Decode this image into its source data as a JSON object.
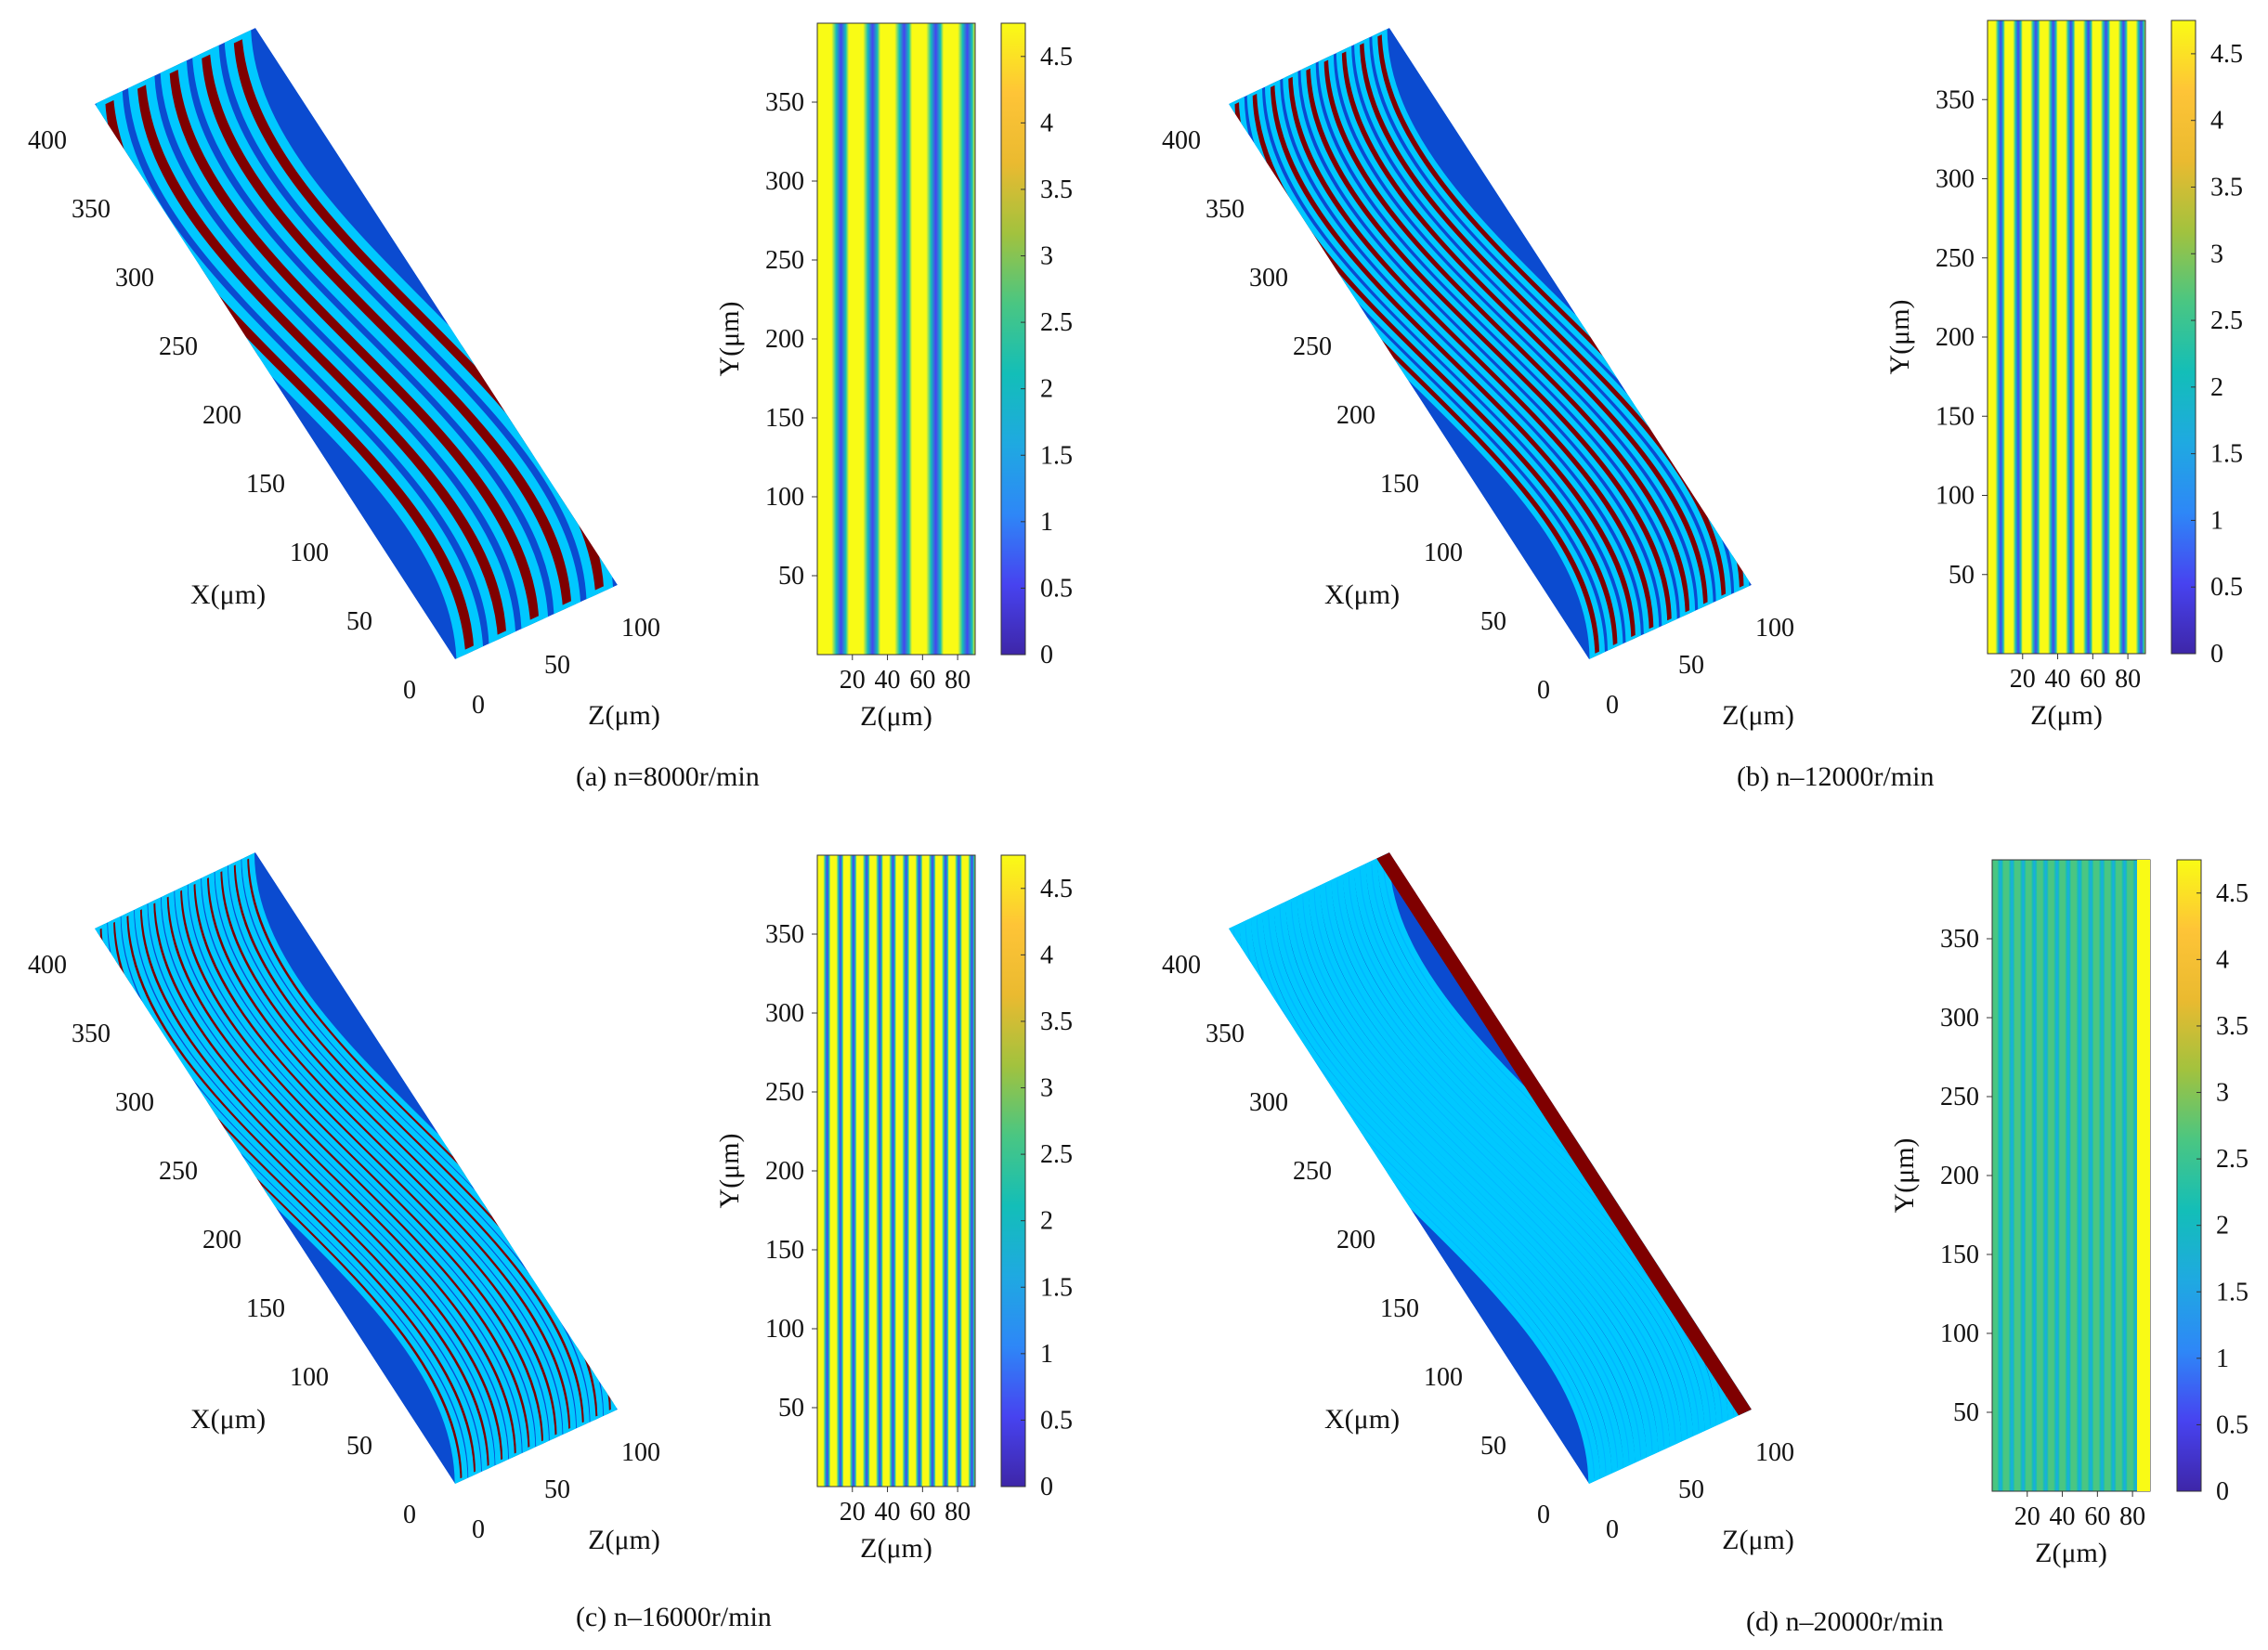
{
  "colormap": {
    "name": "parula",
    "stops": [
      "#3e26a8",
      "#4743f0",
      "#2e87f7",
      "#1fa9e1",
      "#13beb8",
      "#4ac682",
      "#a2c23e",
      "#eaba30",
      "#fec437",
      "#f9fb15"
    ]
  },
  "surface_colors": {
    "low": "#7f0000",
    "mid": "#00b7ff",
    "high": "#0b4bd0"
  },
  "panels": [
    {
      "caption": "(a)  n=8000r/min",
      "surface3d": {
        "x_label": "X(μm)",
        "z_label": "Z(μm)",
        "x_ticks": [
          "0",
          "50",
          "100",
          "150",
          "200",
          "250",
          "300",
          "350",
          "400"
        ],
        "z_ticks": [
          "0",
          "50",
          "100"
        ]
      },
      "heatmap": {
        "x_label": "Z(μm)",
        "y_label": "Y(μm)",
        "x_ticks": [
          "20",
          "40",
          "60",
          "80"
        ],
        "y_ticks": [
          "50",
          "100",
          "150",
          "200",
          "250",
          "300",
          "350"
        ]
      },
      "colorbar": {
        "ticks": [
          "0",
          "0.5",
          "1",
          "1.5",
          "2",
          "2.5",
          "3",
          "3.5",
          "4",
          "4.5"
        ]
      }
    },
    {
      "caption": "(b)  n–12000r/min",
      "surface3d": {
        "x_label": "X(μm)",
        "z_label": "Z(μm)",
        "x_ticks": [
          "0",
          "50",
          "100",
          "150",
          "200",
          "250",
          "300",
          "350",
          "400"
        ],
        "z_ticks": [
          "0",
          "50",
          "100"
        ]
      },
      "heatmap": {
        "x_label": "Z(μm)",
        "y_label": "Y(μm)",
        "x_ticks": [
          "20",
          "40",
          "60",
          "80"
        ],
        "y_ticks": [
          "50",
          "100",
          "150",
          "200",
          "250",
          "300",
          "350"
        ]
      },
      "colorbar": {
        "ticks": [
          "0",
          "0.5",
          "1",
          "1.5",
          "2",
          "2.5",
          "3",
          "3.5",
          "4",
          "4.5"
        ]
      }
    },
    {
      "caption": "(c)  n–16000r/min",
      "surface3d": {
        "x_label": "X(μm)",
        "z_label": "Z(μm)",
        "x_ticks": [
          "0",
          "50",
          "100",
          "150",
          "200",
          "250",
          "300",
          "350",
          "400"
        ],
        "z_ticks": [
          "0",
          "50",
          "100"
        ]
      },
      "heatmap": {
        "x_label": "Z(μm)",
        "y_label": "Y(μm)",
        "x_ticks": [
          "20",
          "40",
          "60",
          "80"
        ],
        "y_ticks": [
          "50",
          "100",
          "150",
          "200",
          "250",
          "300",
          "350"
        ]
      },
      "colorbar": {
        "ticks": [
          "0",
          "0.5",
          "1",
          "1.5",
          "2",
          "2.5",
          "3",
          "3.5",
          "4",
          "4.5"
        ]
      }
    },
    {
      "caption": "(d)  n–20000r/min",
      "surface3d": {
        "x_label": "X(μm)",
        "z_label": "Z(μm)",
        "x_ticks": [
          "0",
          "50",
          "100",
          "150",
          "200",
          "250",
          "300",
          "350",
          "400"
        ],
        "z_ticks": [
          "0",
          "50",
          "100"
        ]
      },
      "heatmap": {
        "x_label": "Z(μm)",
        "y_label": "Y(μm)",
        "x_ticks": [
          "20",
          "40",
          "60",
          "80"
        ],
        "y_ticks": [
          "50",
          "100",
          "150",
          "200",
          "250",
          "300",
          "350"
        ]
      },
      "colorbar": {
        "ticks": [
          "0",
          "0.5",
          "1",
          "1.5",
          "2",
          "2.5",
          "3",
          "3.5",
          "4",
          "4.5"
        ]
      }
    }
  ],
  "chart_data": [
    {
      "type": "heatmap",
      "panel": "(a)",
      "xlim": [
        0,
        90
      ],
      "ylim": [
        0,
        400
      ],
      "clim": [
        0,
        4.75
      ],
      "stripes_across": 5
    },
    {
      "type": "heatmap",
      "panel": "(b)",
      "xlim": [
        0,
        90
      ],
      "ylim": [
        0,
        400
      ],
      "clim": [
        0,
        4.75
      ],
      "stripes_across": 9
    },
    {
      "type": "heatmap",
      "panel": "(c)",
      "xlim": [
        0,
        90
      ],
      "ylim": [
        0,
        400
      ],
      "clim": [
        0,
        4.75
      ],
      "stripes_across": 12
    },
    {
      "type": "heatmap",
      "panel": "(d)",
      "xlim": [
        0,
        90
      ],
      "ylim": [
        0,
        400
      ],
      "clim": [
        0,
        4.75
      ],
      "stripes_across": 14
    }
  ]
}
